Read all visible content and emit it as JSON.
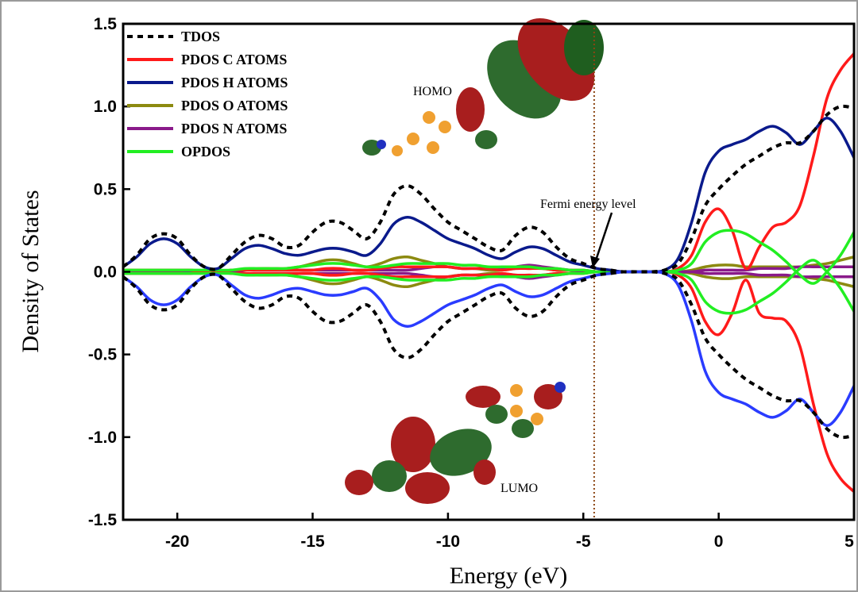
{
  "chart_data": {
    "type": "line",
    "x_label": "Energy (eV)",
    "y_label": "Density of States",
    "xlim": [
      -22,
      5
    ],
    "ylim": [
      -1.5,
      1.5
    ],
    "xticks": [
      -20,
      -15,
      -10,
      -5,
      0,
      5
    ],
    "yticks": [
      1.5,
      {
        "value": 1.0,
        "label": "1.0"
      },
      0.5,
      {
        "value": 0,
        "label": "0.0"
      },
      -0.5,
      {
        "value": -1.0,
        "label": "-1.0"
      },
      -1.5
    ],
    "legend": "top-left",
    "fermi_level": -4.6,
    "fermi_color": "#8b4513",
    "annotations": [
      "Fermi energy level",
      "HOMO",
      "LUMO"
    ],
    "x": [
      -22,
      -21.5,
      -21,
      -20.5,
      -20,
      -19.5,
      -19,
      -18.5,
      -18,
      -17.5,
      -17,
      -16.5,
      -16,
      -15.5,
      -15,
      -14.5,
      -14,
      -13.5,
      -13,
      -12.5,
      -12,
      -11.5,
      -11,
      -10.5,
      -10,
      -9.5,
      -9,
      -8.5,
      -8,
      -7.5,
      -7,
      -6.5,
      -6,
      -5.5,
      -5,
      -4.5,
      -4,
      -3.5,
      -3,
      -2.5,
      -2,
      -1.5,
      -1,
      -0.5,
      0,
      0.5,
      1,
      1.5,
      2,
      2.5,
      3,
      3.5,
      4,
      4.5,
      5
    ],
    "series": [
      {
        "name": "TDOS",
        "color": "#000000",
        "dashed": true,
        "down_color": "#000000",
        "values": [
          0.03,
          0.1,
          0.2,
          0.23,
          0.2,
          0.1,
          0.03,
          0.02,
          0.1,
          0.18,
          0.22,
          0.2,
          0.15,
          0.16,
          0.24,
          0.3,
          0.3,
          0.25,
          0.2,
          0.3,
          0.47,
          0.52,
          0.47,
          0.38,
          0.3,
          0.25,
          0.2,
          0.15,
          0.13,
          0.22,
          0.27,
          0.24,
          0.15,
          0.08,
          0.05,
          0.02,
          0.01,
          0,
          0,
          0,
          0.01,
          0.05,
          0.2,
          0.4,
          0.5,
          0.58,
          0.65,
          0.7,
          0.75,
          0.78,
          0.78,
          0.85,
          0.95,
          1.0,
          0.99
        ],
        "down_values": [
          -0.03,
          -0.1,
          -0.2,
          -0.23,
          -0.2,
          -0.1,
          -0.03,
          -0.02,
          -0.1,
          -0.18,
          -0.22,
          -0.2,
          -0.15,
          -0.16,
          -0.24,
          -0.3,
          -0.3,
          -0.25,
          -0.2,
          -0.3,
          -0.47,
          -0.52,
          -0.47,
          -0.38,
          -0.3,
          -0.25,
          -0.2,
          -0.15,
          -0.13,
          -0.22,
          -0.27,
          -0.24,
          -0.15,
          -0.08,
          -0.05,
          -0.02,
          -0.01,
          0,
          0,
          0,
          -0.01,
          -0.05,
          -0.2,
          -0.4,
          -0.5,
          -0.58,
          -0.65,
          -0.7,
          -0.75,
          -0.78,
          -0.78,
          -0.85,
          -0.95,
          -1.0,
          -0.99
        ]
      },
      {
        "name": "PDOS C ATOMS",
        "color": "#ff1a1a",
        "down_color": "#ff1a1a",
        "values": [
          0.01,
          0.01,
          0.01,
          0.01,
          0.01,
          0.01,
          0,
          0,
          0.01,
          0.01,
          0.01,
          0.01,
          0.01,
          0.01,
          0.01,
          0.02,
          0.02,
          0.01,
          0.01,
          0.02,
          0.03,
          0.03,
          0.03,
          0.03,
          0.03,
          0.02,
          0.02,
          0.02,
          0.01,
          0.02,
          0.02,
          0.02,
          0.01,
          0.01,
          0.01,
          0,
          0,
          0,
          0,
          0,
          0,
          0.02,
          0.1,
          0.3,
          0.38,
          0.25,
          0.02,
          0.15,
          0.27,
          0.3,
          0.4,
          0.7,
          1.05,
          1.22,
          1.32
        ],
        "down_values": [
          -0.01,
          -0.01,
          -0.01,
          -0.01,
          -0.01,
          -0.01,
          0,
          0,
          -0.01,
          -0.01,
          -0.01,
          -0.01,
          -0.01,
          -0.01,
          -0.01,
          -0.02,
          -0.02,
          -0.01,
          -0.01,
          -0.02,
          -0.03,
          -0.03,
          -0.03,
          -0.03,
          -0.03,
          -0.02,
          -0.02,
          -0.02,
          -0.01,
          -0.02,
          -0.02,
          -0.02,
          -0.01,
          -0.01,
          -0.01,
          0,
          0,
          0,
          0,
          0,
          0,
          -0.02,
          -0.1,
          -0.3,
          -0.38,
          -0.25,
          -0.05,
          -0.25,
          -0.28,
          -0.3,
          -0.45,
          -0.8,
          -1.1,
          -1.25,
          -1.33
        ]
      },
      {
        "name": "PDOS H ATOMS",
        "color": "#0a1a8c",
        "down_color": "#2a3cff",
        "values": [
          0.03,
          0.09,
          0.17,
          0.2,
          0.17,
          0.09,
          0.03,
          0.02,
          0.08,
          0.14,
          0.16,
          0.14,
          0.11,
          0.1,
          0.12,
          0.14,
          0.14,
          0.12,
          0.1,
          0.17,
          0.29,
          0.33,
          0.3,
          0.25,
          0.2,
          0.17,
          0.14,
          0.1,
          0.08,
          0.12,
          0.15,
          0.14,
          0.1,
          0.06,
          0.04,
          0.02,
          0.01,
          0,
          0,
          0,
          0.01,
          0.08,
          0.3,
          0.6,
          0.73,
          0.77,
          0.8,
          0.85,
          0.88,
          0.84,
          0.77,
          0.85,
          0.93,
          0.85,
          0.69
        ],
        "down_values": [
          -0.03,
          -0.09,
          -0.17,
          -0.2,
          -0.17,
          -0.09,
          -0.03,
          -0.02,
          -0.08,
          -0.14,
          -0.16,
          -0.14,
          -0.11,
          -0.1,
          -0.12,
          -0.14,
          -0.14,
          -0.12,
          -0.1,
          -0.17,
          -0.29,
          -0.33,
          -0.3,
          -0.25,
          -0.2,
          -0.17,
          -0.14,
          -0.1,
          -0.08,
          -0.12,
          -0.15,
          -0.14,
          -0.1,
          -0.06,
          -0.04,
          -0.02,
          -0.01,
          0,
          0,
          0,
          -0.01,
          -0.08,
          -0.3,
          -0.6,
          -0.73,
          -0.77,
          -0.8,
          -0.85,
          -0.88,
          -0.84,
          -0.77,
          -0.85,
          -0.93,
          -0.85,
          -0.69
        ]
      },
      {
        "name": "PDOS O ATOMS",
        "color": "#8c8a10",
        "down_color": "#8c8a10",
        "values": [
          0.01,
          0.01,
          0.01,
          0.01,
          0.01,
          0.01,
          0,
          0,
          0.01,
          0.01,
          0.02,
          0.02,
          0.02,
          0.03,
          0.05,
          0.07,
          0.07,
          0.05,
          0.03,
          0.05,
          0.08,
          0.09,
          0.07,
          0.05,
          0.03,
          0.02,
          0.02,
          0.01,
          0.01,
          0.02,
          0.02,
          0.02,
          0.01,
          0.01,
          0,
          0,
          0,
          0,
          0,
          0,
          0,
          0,
          0.01,
          0.03,
          0.04,
          0.04,
          0.03,
          0.03,
          0.03,
          0.03,
          0.03,
          0.04,
          0.05,
          0.07,
          0.09
        ],
        "down_values": [
          -0.01,
          -0.01,
          -0.01,
          -0.01,
          -0.01,
          -0.01,
          0,
          0,
          -0.01,
          -0.01,
          -0.02,
          -0.02,
          -0.02,
          -0.03,
          -0.05,
          -0.07,
          -0.07,
          -0.05,
          -0.03,
          -0.05,
          -0.08,
          -0.09,
          -0.07,
          -0.05,
          -0.03,
          -0.02,
          -0.02,
          -0.01,
          -0.01,
          -0.02,
          -0.02,
          -0.02,
          -0.01,
          -0.01,
          0,
          0,
          0,
          0,
          0,
          0,
          0,
          0,
          -0.01,
          -0.03,
          -0.04,
          -0.04,
          -0.03,
          -0.03,
          -0.03,
          -0.03,
          -0.03,
          -0.04,
          -0.05,
          -0.07,
          -0.09
        ]
      },
      {
        "name": "PDOS N ATOMS",
        "color": "#8a1a8a",
        "down_color": "#8a1a8a",
        "values": [
          0,
          0,
          0,
          0,
          0,
          0,
          0,
          0,
          0,
          0.01,
          0.01,
          0.01,
          0.01,
          0.01,
          0.01,
          0.01,
          0.01,
          0.01,
          0.01,
          0.01,
          0.01,
          0.01,
          0.02,
          0.03,
          0.03,
          0.02,
          0.02,
          0.02,
          0.02,
          0.03,
          0.04,
          0.03,
          0.02,
          0.01,
          0,
          0,
          0,
          0,
          0,
          0,
          0,
          0,
          0,
          0.01,
          0.01,
          0.01,
          0.01,
          0.02,
          0.02,
          0.02,
          0.03,
          0.03,
          0.03,
          0.03,
          0.03
        ],
        "down_values": [
          0,
          0,
          0,
          0,
          0,
          0,
          0,
          0,
          0,
          -0.01,
          -0.01,
          -0.01,
          -0.01,
          -0.01,
          -0.01,
          -0.01,
          -0.01,
          -0.01,
          -0.01,
          -0.01,
          -0.01,
          -0.01,
          -0.02,
          -0.03,
          -0.03,
          -0.02,
          -0.02,
          -0.02,
          -0.02,
          -0.03,
          -0.04,
          -0.03,
          -0.02,
          -0.01,
          0,
          0,
          0,
          0,
          0,
          0,
          0,
          0,
          0,
          -0.01,
          -0.01,
          -0.01,
          -0.01,
          -0.02,
          -0.02,
          -0.02,
          -0.03,
          -0.03,
          -0.03,
          -0.03,
          -0.03
        ]
      },
      {
        "name": "OPDOS",
        "color": "#22ee22",
        "down_color": "#22ee22",
        "values": [
          0.01,
          0.01,
          0.01,
          0.01,
          0.01,
          0.01,
          0.01,
          0.01,
          0.01,
          0.02,
          0.02,
          0.02,
          0.02,
          0.03,
          0.04,
          0.05,
          0.05,
          0.04,
          0.03,
          0.03,
          0.04,
          0.05,
          0.05,
          0.05,
          0.05,
          0.04,
          0.04,
          0.03,
          0.03,
          0.03,
          0.03,
          0.02,
          0.02,
          0.01,
          0.01,
          0,
          0,
          0,
          0,
          0,
          0,
          0.01,
          0.05,
          0.18,
          0.24,
          0.25,
          0.23,
          0.18,
          0.13,
          0.06,
          -0.02,
          -0.07,
          0,
          0.1,
          0.24
        ],
        "down_values": [
          -0.01,
          -0.01,
          -0.01,
          -0.01,
          -0.01,
          -0.01,
          -0.01,
          -0.01,
          -0.01,
          -0.02,
          -0.02,
          -0.02,
          -0.02,
          -0.03,
          -0.04,
          -0.05,
          -0.05,
          -0.04,
          -0.03,
          -0.03,
          -0.04,
          -0.05,
          -0.05,
          -0.05,
          -0.05,
          -0.04,
          -0.04,
          -0.03,
          -0.03,
          -0.03,
          -0.03,
          -0.02,
          -0.02,
          -0.01,
          -0.01,
          0,
          0,
          0,
          0,
          0,
          0,
          -0.01,
          -0.05,
          -0.18,
          -0.24,
          -0.25,
          -0.23,
          -0.18,
          -0.13,
          -0.06,
          0.02,
          0.07,
          0,
          -0.1,
          -0.24
        ]
      }
    ]
  }
}
